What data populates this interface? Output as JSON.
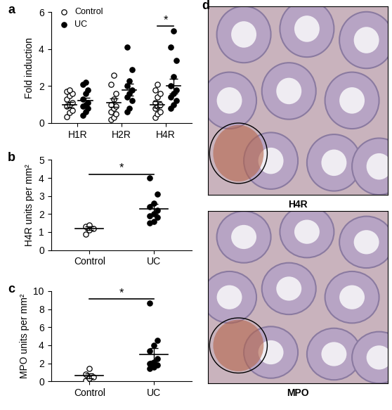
{
  "chart_data": [
    {
      "panel": "a",
      "type": "scatter",
      "y_label": "Fold induction",
      "categories": [
        "H1R",
        "H2R",
        "H4R"
      ],
      "ylim": [
        0,
        6
      ],
      "yticks": [
        0,
        2,
        4,
        6
      ],
      "legend": "upper left",
      "series": [
        {
          "name": "Control",
          "color": "#000000",
          "marker": "open_circle",
          "values": [
            [
              0.35,
              0.55,
              0.7,
              0.9,
              1.0,
              1.1,
              1.3,
              1.5,
              1.6,
              1.7,
              1.8
            ],
            [
              0.2,
              0.3,
              0.5,
              0.6,
              0.8,
              0.9,
              1.0,
              1.3,
              1.6,
              2.1,
              2.6
            ],
            [
              0.3,
              0.5,
              0.6,
              0.8,
              0.9,
              1.0,
              1.1,
              1.4,
              1.6,
              1.8,
              2.1
            ]
          ],
          "means": [
            1.0,
            1.1,
            1.0
          ],
          "errors": [
            0.15,
            0.22,
            0.17
          ]
        },
        {
          "name": "UC",
          "color": "#000000",
          "marker": "circle",
          "values": [
            [
              0.4,
              0.6,
              0.8,
              0.9,
              1.0,
              1.1,
              1.3,
              1.6,
              1.8,
              2.1,
              2.2
            ],
            [
              0.6,
              0.8,
              1.2,
              1.4,
              1.6,
              1.8,
              2.0,
              2.3,
              2.9,
              4.1
            ],
            [
              0.8,
              1.0,
              1.2,
              1.4,
              1.6,
              1.8,
              2.0,
              2.5,
              3.4,
              4.1,
              5.0
            ]
          ],
          "means": [
            1.2,
            1.8,
            2.0
          ],
          "errors": [
            0.18,
            0.33,
            0.4
          ]
        }
      ],
      "annotations": [
        {
          "text": "*",
          "category": "H4R"
        }
      ]
    },
    {
      "panel": "b",
      "type": "scatter",
      "y_label": "H4R units per mm²",
      "categories": [
        "Control",
        "UC"
      ],
      "ylim": [
        0,
        5
      ],
      "yticks": [
        0,
        1,
        2,
        3,
        4,
        5
      ],
      "series": [
        {
          "name": "Control",
          "color": "#000000",
          "marker": "open_circle",
          "values": [
            [
              0.9,
              1.1,
              1.2,
              1.3,
              1.4
            ],
            null
          ],
          "means": [
            1.2,
            null
          ],
          "errors": [
            0.1,
            null
          ]
        },
        {
          "name": "UC",
          "color": "#000000",
          "marker": "circle",
          "values": [
            null,
            [
              1.5,
              1.6,
              1.8,
              1.9,
              2.0,
              2.2,
              2.4,
              2.6,
              3.1,
              4.0
            ]
          ],
          "means": [
            null,
            2.3
          ],
          "errors": [
            null,
            0.27
          ]
        }
      ],
      "annotations": [
        {
          "text": "*",
          "between": [
            "Control",
            "UC"
          ]
        }
      ]
    },
    {
      "panel": "c",
      "type": "scatter",
      "y_label": "MPO units per mm²",
      "categories": [
        "Control",
        "UC"
      ],
      "ylim": [
        0,
        10
      ],
      "yticks": [
        0,
        2,
        4,
        6,
        8,
        10
      ],
      "series": [
        {
          "name": "Control",
          "color": "#000000",
          "marker": "open_circle",
          "values": [
            [
              0.1,
              0.3,
              0.5,
              0.8,
              1.4
            ],
            null
          ],
          "means": [
            0.6,
            null
          ],
          "errors": [
            0.25,
            null
          ]
        },
        {
          "name": "UC",
          "color": "#000000",
          "marker": "circle",
          "values": [
            null,
            [
              1.4,
              1.6,
              1.8,
              2.0,
              2.1,
              2.5,
              3.4,
              4.0,
              4.5,
              8.7
            ]
          ],
          "means": [
            null,
            3.0
          ],
          "errors": [
            null,
            0.7
          ]
        }
      ],
      "annotations": [
        {
          "text": "*",
          "between": [
            "Control",
            "UC"
          ]
        }
      ]
    }
  ],
  "image_panel": {
    "panel": "d",
    "images": [
      {
        "label": "H4R"
      },
      {
        "label": "MPO"
      }
    ]
  }
}
